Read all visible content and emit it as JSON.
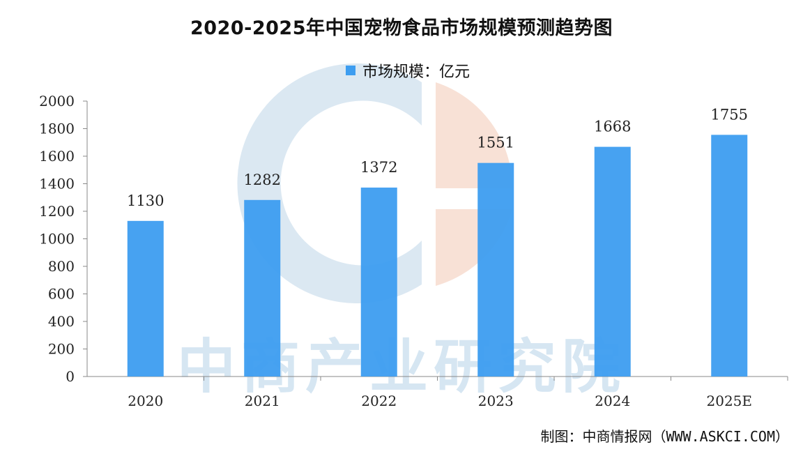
{
  "chart_data": {
    "type": "bar",
    "title": "2020-2025年中国宠物食品市场规模预测趋势图",
    "categories": [
      "2020",
      "2021",
      "2022",
      "2023",
      "2024",
      "2025E"
    ],
    "series": [
      {
        "name": "市场规模：亿元",
        "values": [
          1130,
          1282,
          1372,
          1551,
          1668,
          1755
        ]
      }
    ],
    "ylim": [
      0,
      2000
    ],
    "yticks": [
      0,
      200,
      400,
      600,
      800,
      1000,
      1200,
      1400,
      1600,
      1800,
      2000
    ],
    "data_labels": true,
    "grid": false,
    "legend_position": "top-center",
    "bar_color": "#3d9df0"
  },
  "watermark": {
    "text": "中商产业研究院",
    "logo_colors": [
      "#cfe0ee",
      "#f6d7c8"
    ]
  },
  "footer": {
    "credit": "制图：中商情报网（WWW.ASKCI.COM）"
  }
}
